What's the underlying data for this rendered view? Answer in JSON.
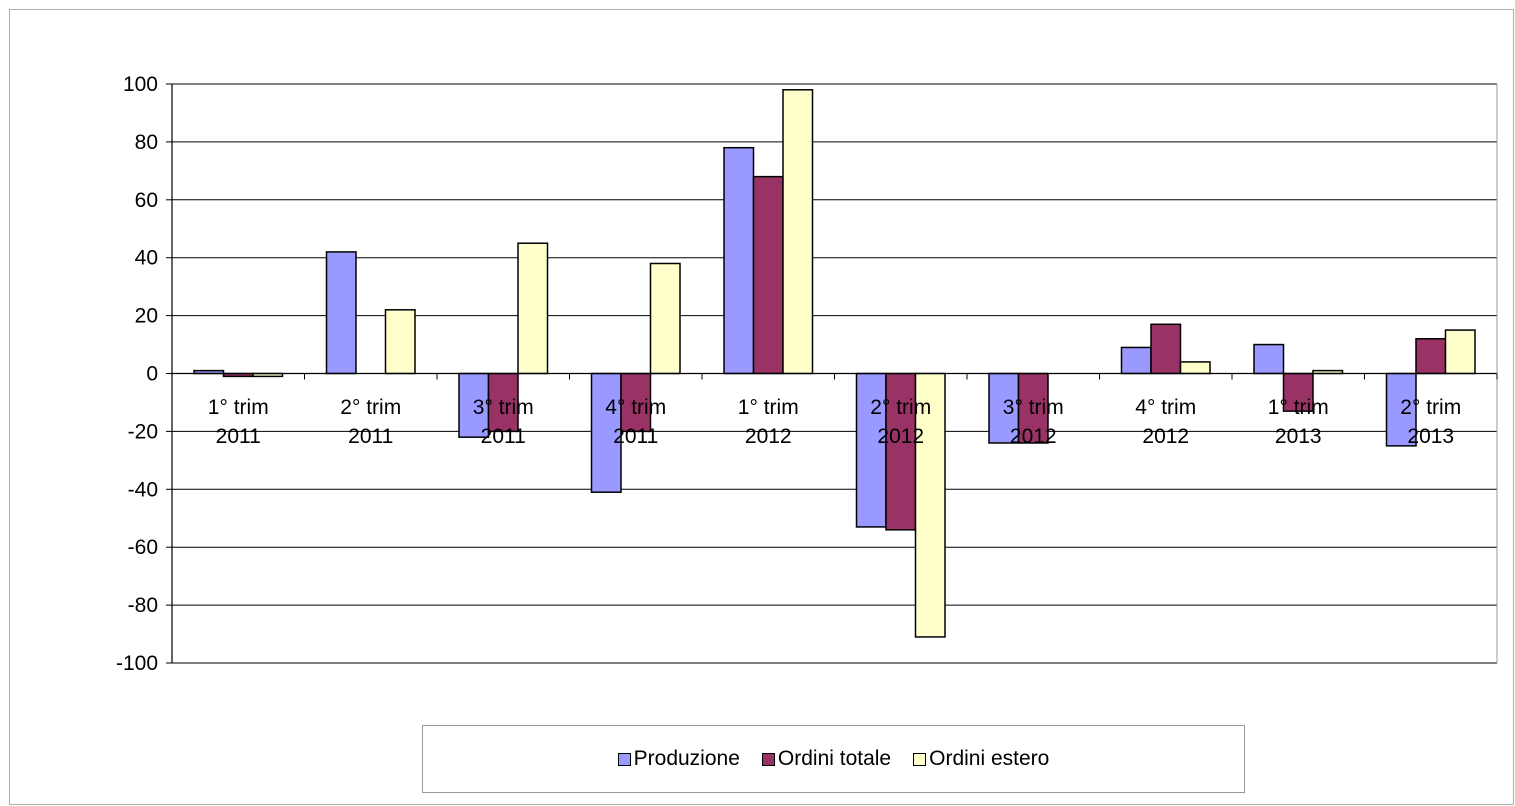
{
  "chart_data": {
    "type": "bar",
    "categories": [
      [
        "1° trim",
        "2011"
      ],
      [
        "2° trim",
        "2011"
      ],
      [
        "3° trim",
        "2011"
      ],
      [
        "4° trim",
        "2011"
      ],
      [
        "1° trim",
        "2012"
      ],
      [
        "2° trim",
        "2012"
      ],
      [
        "3° trim",
        "2012"
      ],
      [
        "4° trim",
        "2012"
      ],
      [
        "1° trim",
        "2013"
      ],
      [
        "2° trim",
        "2013"
      ]
    ],
    "series": [
      {
        "name": "Produzione",
        "color": "#9999ff",
        "values": [
          1,
          42,
          -22,
          -41,
          78,
          -53,
          -24,
          9,
          10,
          -25
        ]
      },
      {
        "name": "Ordini totale",
        "color": "#993366",
        "values": [
          -1,
          0,
          -20,
          -20,
          68,
          -54,
          -24,
          17,
          -13,
          12
        ]
      },
      {
        "name": "Ordini estero",
        "color": "#ffffcc",
        "values": [
          -1,
          22,
          45,
          38,
          98,
          -91,
          0,
          4,
          1,
          15
        ]
      }
    ],
    "ylim": [
      -100,
      100
    ],
    "yticks": [
      100,
      80,
      60,
      40,
      20,
      0,
      -20,
      -40,
      -60,
      -80,
      -100
    ],
    "grid": true,
    "legend_position": "bottom"
  }
}
